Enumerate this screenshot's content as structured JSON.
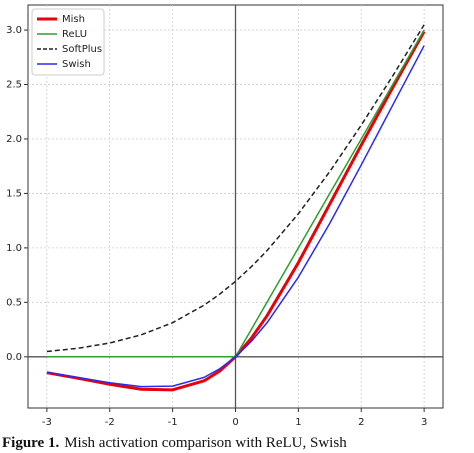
{
  "chart_data": {
    "type": "line",
    "x": [
      -3,
      -2.5,
      -2,
      -1.5,
      -1,
      -0.5,
      -0.25,
      0,
      0.25,
      0.5,
      1,
      1.5,
      2,
      2.5,
      3
    ],
    "series": [
      {
        "name": "Mish",
        "color": "#e8000b",
        "linewidth": 3,
        "linestyle": "solid",
        "values": [
          -0.1458,
          -0.1968,
          -0.2524,
          -0.2981,
          -0.3034,
          -0.2207,
          -0.1299,
          0,
          0.1695,
          0.3752,
          0.8651,
          1.4033,
          1.944,
          2.4713,
          2.9865
        ]
      },
      {
        "name": "ReLU",
        "color": "#2ca02c",
        "linewidth": 1.5,
        "linestyle": "solid",
        "values": [
          0,
          0,
          0,
          0,
          0,
          0,
          0,
          0,
          0.25,
          0.5,
          1,
          1.5,
          2,
          2.5,
          3
        ]
      },
      {
        "name": "SoftPlus",
        "color": "#222222",
        "linewidth": 1.5,
        "linestyle": "dashed",
        "values": [
          0.0486,
          0.0789,
          0.1269,
          0.2014,
          0.3133,
          0.4741,
          0.5759,
          0.6931,
          0.8259,
          0.9741,
          1.3133,
          1.7014,
          2.1269,
          2.5789,
          3.0486
        ]
      },
      {
        "name": "Swish",
        "color": "#2a2af0",
        "linewidth": 1.5,
        "linestyle": "solid",
        "values": [
          -0.1423,
          -0.1896,
          -0.2384,
          -0.2736,
          -0.2689,
          -0.1888,
          -0.1094,
          0,
          0.1406,
          0.3112,
          0.7311,
          1.2264,
          1.7616,
          2.3103,
          2.8577
        ]
      }
    ],
    "xlim": [
      -3.3,
      3.3
    ],
    "ylim": [
      -0.47,
      3.23
    ],
    "xticks": [
      -3,
      -2,
      -1,
      0,
      1,
      2,
      3
    ],
    "yticks": [
      {
        "value": 0,
        "label": "0.0"
      },
      {
        "value": 0.5,
        "label": "0.5"
      },
      {
        "value": 1,
        "label": "1.0"
      },
      {
        "value": 1.5,
        "label": "1.5"
      },
      {
        "value": 2,
        "label": "2.0"
      },
      {
        "value": 2.5,
        "label": "2.5"
      },
      {
        "value": 3,
        "label": "3.0"
      }
    ],
    "grid": true,
    "legend": "upper-left"
  },
  "caption": {
    "label": "Figure 1.",
    "text": "Mish activation comparison with ReLU, Swish"
  }
}
